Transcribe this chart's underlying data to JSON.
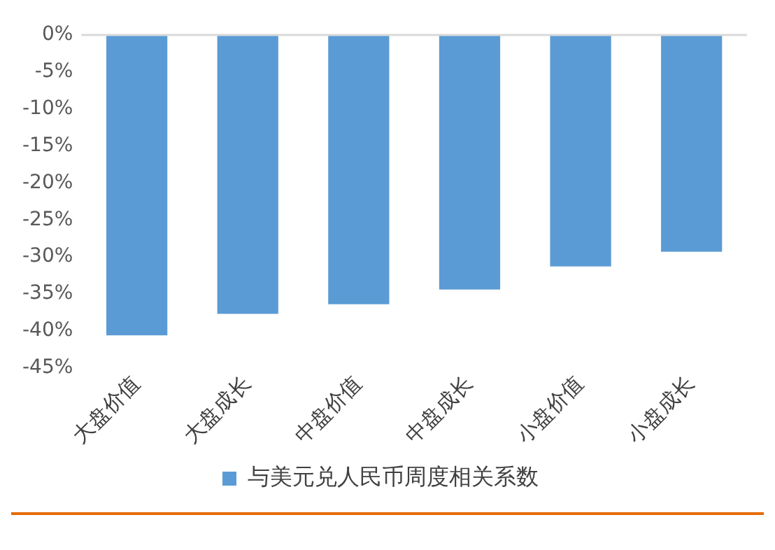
{
  "chart_data": {
    "type": "bar",
    "categories": [
      "大盘价值",
      "大盘成长",
      "中盘价值",
      "中盘成长",
      "小盘价值",
      "小盘成长"
    ],
    "series": [
      {
        "name": "与美元兑人民币周度相关系数",
        "color": "#5b9bd5",
        "values": [
          -40.6,
          -37.7,
          -36.4,
          -34.4,
          -31.3,
          -29.3
        ]
      }
    ],
    "ylim": [
      -45,
      0
    ],
    "yticks": [
      {
        "value": 0,
        "label": "0%"
      },
      {
        "value": -5,
        "label": "-5%"
      },
      {
        "value": -10,
        "label": "-10%"
      },
      {
        "value": -15,
        "label": "-15%"
      },
      {
        "value": -20,
        "label": "-20%"
      },
      {
        "value": -25,
        "label": "-25%"
      },
      {
        "value": -30,
        "label": "-30%"
      },
      {
        "value": -35,
        "label": "-35%"
      },
      {
        "value": -40,
        "label": "-40%"
      },
      {
        "value": -45,
        "label": "-45%"
      }
    ],
    "grid": false,
    "legend": "bottom"
  }
}
